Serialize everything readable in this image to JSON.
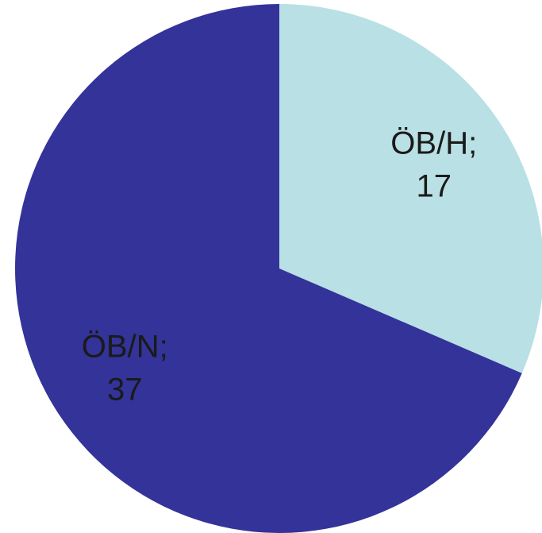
{
  "chart_data": {
    "type": "pie",
    "categories": [
      "ÖB/H;",
      "ÖB/N;"
    ],
    "values": [
      17,
      37
    ],
    "colors": [
      "#b9e0e4",
      "#333399"
    ]
  }
}
